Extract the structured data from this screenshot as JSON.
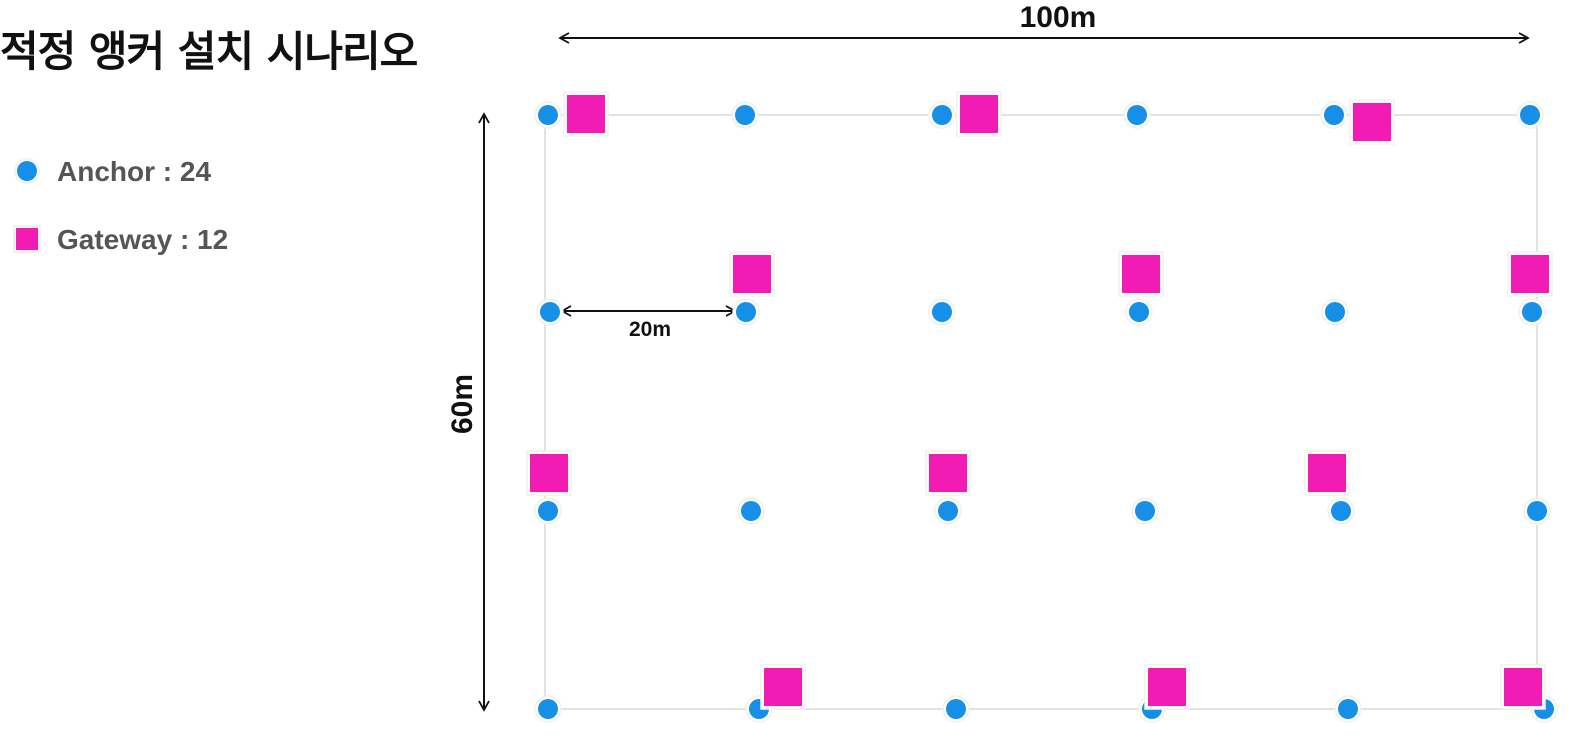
{
  "title": "적정 앵커 설치 시나리오",
  "legend": {
    "anchor_label": "Anchor : 24",
    "gateway_label": "Gateway : 12"
  },
  "dimensions": {
    "width_label": "100m",
    "height_label": "60m",
    "spacing_label": "20m"
  },
  "colors": {
    "anchor": "#168FE6",
    "gateway": "#F21CB5",
    "grid_line": "#E2E2E2",
    "text": "#111111",
    "legend_text": "#555555"
  },
  "icons": {
    "anchor": "blue-circle-icon",
    "gateway": "magenta-square-icon"
  },
  "layout_grid": {
    "columns": 6,
    "rows": 4,
    "anchor_count": 24,
    "gateway_count": 12
  }
}
